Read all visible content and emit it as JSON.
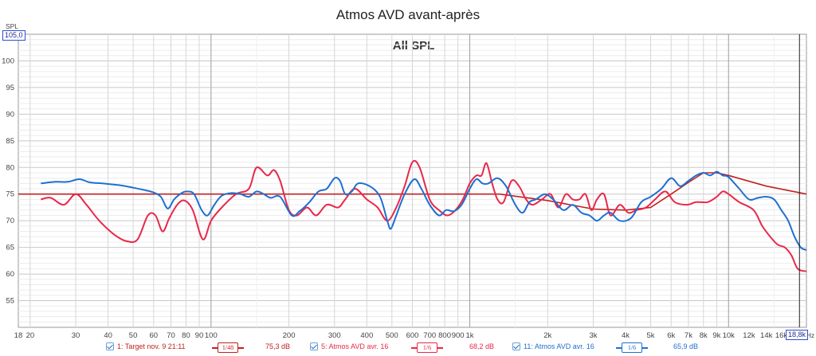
{
  "chart_data": {
    "type": "line",
    "title": "Atmos AVD avant-après",
    "subtitle": "All SPL",
    "ylabel": "SPL",
    "xunit": "Hz",
    "xscale": "log",
    "xlim": [
      18,
      20000
    ],
    "ylim": [
      50,
      105
    ],
    "grid": true,
    "x_ticks": [
      "18",
      "20",
      "30",
      "40",
      "50",
      "60",
      "70",
      "80",
      "90",
      "100",
      "200",
      "300",
      "400",
      "500",
      "600",
      "700",
      "800",
      "900",
      "1k",
      "2k",
      "3k",
      "4k",
      "5k",
      "6k",
      "7k",
      "8k",
      "9k",
      "10k",
      "12k",
      "14k",
      "16k",
      "18,8k"
    ],
    "x_tick_values": [
      18,
      20,
      30,
      40,
      50,
      60,
      70,
      80,
      90,
      100,
      200,
      300,
      400,
      500,
      600,
      700,
      800,
      900,
      1000,
      2000,
      3000,
      4000,
      5000,
      6000,
      7000,
      8000,
      9000,
      10000,
      12000,
      14000,
      16000,
      18800
    ],
    "y_ticks": [
      "55",
      "60",
      "65",
      "70",
      "75",
      "80",
      "85",
      "90",
      "95",
      "100"
    ],
    "y_tick_values": [
      55,
      60,
      65,
      70,
      75,
      80,
      85,
      90,
      95,
      100
    ],
    "y_top_readout": "105,0",
    "x_cursor_readout": "18,8k",
    "x_cursor": 18800,
    "series": [
      {
        "name": "1: Target nov. 9 21:11",
        "color": "#c02020",
        "smoothing": "1/48",
        "level": "75,3 dB",
        "points": [
          [
            18,
            75
          ],
          [
            1300,
            75
          ],
          [
            2000,
            73.8
          ],
          [
            3000,
            72.2
          ],
          [
            4000,
            72
          ],
          [
            5000,
            72.5
          ],
          [
            6000,
            75
          ],
          [
            7000,
            77.2
          ],
          [
            8000,
            79
          ],
          [
            9000,
            79
          ],
          [
            10000,
            78.5
          ],
          [
            14000,
            76.5
          ],
          [
            20000,
            75
          ]
        ]
      },
      {
        "name": "5: Atmos AVD avr. 16",
        "color": "#e8284a",
        "smoothing": "1/6",
        "level": "68,2 dB",
        "points": [
          [
            22,
            74
          ],
          [
            24,
            74.3
          ],
          [
            27,
            73
          ],
          [
            30,
            75
          ],
          [
            33,
            73
          ],
          [
            37,
            70
          ],
          [
            42,
            67.5
          ],
          [
            47,
            66.2
          ],
          [
            52,
            66.5
          ],
          [
            57,
            71
          ],
          [
            61,
            71
          ],
          [
            65,
            68
          ],
          [
            69,
            70.5
          ],
          [
            74,
            73
          ],
          [
            79,
            73.8
          ],
          [
            85,
            72
          ],
          [
            93,
            66.5
          ],
          [
            100,
            70
          ],
          [
            110,
            72.5
          ],
          [
            125,
            75
          ],
          [
            140,
            76
          ],
          [
            150,
            80
          ],
          [
            165,
            78.5
          ],
          [
            175,
            79.5
          ],
          [
            185,
            77.5
          ],
          [
            200,
            72
          ],
          [
            215,
            71
          ],
          [
            235,
            72.5
          ],
          [
            255,
            71
          ],
          [
            280,
            73
          ],
          [
            310,
            72.5
          ],
          [
            330,
            74
          ],
          [
            360,
            76
          ],
          [
            400,
            74
          ],
          [
            440,
            72.5
          ],
          [
            480,
            70
          ],
          [
            520,
            72.5
          ],
          [
            560,
            76.5
          ],
          [
            600,
            81
          ],
          [
            640,
            80
          ],
          [
            700,
            74
          ],
          [
            760,
            72
          ],
          [
            820,
            71
          ],
          [
            880,
            72
          ],
          [
            940,
            74
          ],
          [
            1000,
            77
          ],
          [
            1060,
            78.5
          ],
          [
            1110,
            78.5
          ],
          [
            1160,
            80.8
          ],
          [
            1220,
            77
          ],
          [
            1280,
            74
          ],
          [
            1350,
            73.5
          ],
          [
            1450,
            77.5
          ],
          [
            1550,
            76.5
          ],
          [
            1650,
            74
          ],
          [
            1750,
            73
          ],
          [
            1900,
            74
          ],
          [
            2050,
            75
          ],
          [
            2200,
            72.5
          ],
          [
            2350,
            75
          ],
          [
            2500,
            74
          ],
          [
            2650,
            74
          ],
          [
            2800,
            75
          ],
          [
            2950,
            72
          ],
          [
            3100,
            74
          ],
          [
            3300,
            75
          ],
          [
            3500,
            71
          ],
          [
            3800,
            73
          ],
          [
            4100,
            71.5
          ],
          [
            4400,
            72
          ],
          [
            4800,
            72.5
          ],
          [
            5200,
            74
          ],
          [
            5700,
            75.5
          ],
          [
            6200,
            73.5
          ],
          [
            6900,
            73
          ],
          [
            7500,
            73.5
          ],
          [
            8300,
            73.5
          ],
          [
            9000,
            74.5
          ],
          [
            9500,
            75.5
          ],
          [
            10000,
            75
          ],
          [
            11000,
            73.5
          ],
          [
            12500,
            72
          ],
          [
            13500,
            69
          ],
          [
            14500,
            67
          ],
          [
            15500,
            65.5
          ],
          [
            16500,
            65
          ],
          [
            17500,
            63.5
          ],
          [
            18500,
            61
          ],
          [
            20000,
            60.5
          ]
        ]
      },
      {
        "name": "11: Atmos AVD avr. 16",
        "color": "#1f6fd0",
        "smoothing": "1/6",
        "level": "65,9 dB",
        "points": [
          [
            22,
            77
          ],
          [
            25,
            77.3
          ],
          [
            28,
            77.3
          ],
          [
            31,
            77.8
          ],
          [
            34,
            77.2
          ],
          [
            38,
            77
          ],
          [
            44,
            76.7
          ],
          [
            50,
            76.2
          ],
          [
            56,
            75.7
          ],
          [
            60,
            75.3
          ],
          [
            64,
            74.5
          ],
          [
            68,
            72.3
          ],
          [
            72,
            74
          ],
          [
            77,
            75.2
          ],
          [
            81,
            75.5
          ],
          [
            86,
            75
          ],
          [
            92,
            72
          ],
          [
            97,
            71
          ],
          [
            103,
            73
          ],
          [
            110,
            74.7
          ],
          [
            120,
            75.2
          ],
          [
            130,
            75
          ],
          [
            140,
            74.5
          ],
          [
            150,
            75.5
          ],
          [
            160,
            75
          ],
          [
            170,
            74.3
          ],
          [
            185,
            74.5
          ],
          [
            205,
            71
          ],
          [
            220,
            71.8
          ],
          [
            240,
            73.5
          ],
          [
            260,
            75.5
          ],
          [
            280,
            76
          ],
          [
            300,
            78
          ],
          [
            315,
            77.5
          ],
          [
            330,
            75
          ],
          [
            350,
            75.5
          ],
          [
            370,
            77
          ],
          [
            410,
            76.5
          ],
          [
            450,
            74.5
          ],
          [
            480,
            70
          ],
          [
            495,
            68.5
          ],
          [
            520,
            71
          ],
          [
            560,
            75
          ],
          [
            610,
            77.8
          ],
          [
            650,
            76
          ],
          [
            700,
            73
          ],
          [
            760,
            71
          ],
          [
            810,
            72
          ],
          [
            870,
            71.8
          ],
          [
            930,
            73
          ],
          [
            1000,
            76
          ],
          [
            1060,
            77.8
          ],
          [
            1120,
            77
          ],
          [
            1180,
            77
          ],
          [
            1280,
            78
          ],
          [
            1380,
            76.5
          ],
          [
            1500,
            73
          ],
          [
            1600,
            71.5
          ],
          [
            1700,
            73.5
          ],
          [
            1800,
            74
          ],
          [
            1950,
            75
          ],
          [
            2100,
            74
          ],
          [
            2300,
            72
          ],
          [
            2500,
            73
          ],
          [
            2700,
            71.5
          ],
          [
            2900,
            71
          ],
          [
            3100,
            70
          ],
          [
            3300,
            71
          ],
          [
            3500,
            71.5
          ],
          [
            3800,
            70
          ],
          [
            4200,
            70.5
          ],
          [
            4600,
            73.5
          ],
          [
            5000,
            74.5
          ],
          [
            5500,
            76
          ],
          [
            6000,
            78
          ],
          [
            6500,
            76.5
          ],
          [
            7000,
            77.5
          ],
          [
            7500,
            78.5
          ],
          [
            8000,
            79
          ],
          [
            8500,
            78.5
          ],
          [
            9000,
            79.2
          ],
          [
            9500,
            78.5
          ],
          [
            10000,
            78.2
          ],
          [
            11000,
            76
          ],
          [
            12000,
            74
          ],
          [
            13000,
            74.3
          ],
          [
            14000,
            74.5
          ],
          [
            15000,
            74
          ],
          [
            16000,
            72
          ],
          [
            17000,
            70
          ],
          [
            18000,
            67
          ],
          [
            19000,
            65
          ],
          [
            20000,
            64.5
          ]
        ]
      }
    ]
  },
  "legend": [
    {
      "label": "1: Target nov. 9 21:11",
      "smoothing": "1/48",
      "level": "75,3 dB",
      "color": "#c02020"
    },
    {
      "label": "5: Atmos AVD avr. 16",
      "smoothing": "1/6",
      "level": "68,2 dB",
      "color": "#e8284a"
    },
    {
      "label": "11: Atmos AVD avr. 16",
      "smoothing": "1/6",
      "level": "65,9 dB",
      "color": "#1f6fd0"
    }
  ]
}
